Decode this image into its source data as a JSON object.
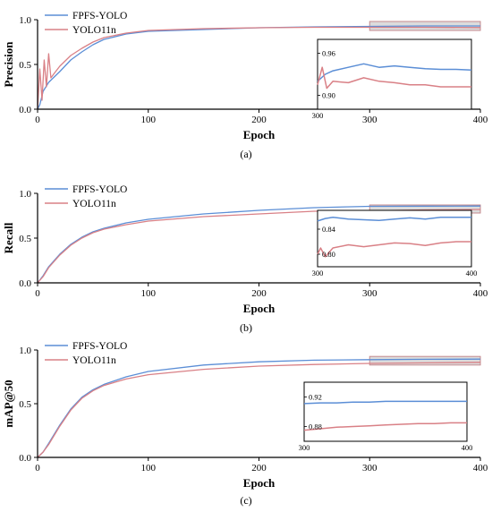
{
  "colors": {
    "fpfs": "#5b8ed6",
    "yolo": "#d98086",
    "highlight_fill": "#d3d3d3",
    "highlight_stroke": "#c48a8e"
  },
  "chart_data": [
    {
      "type": "line",
      "caption": "(a)",
      "xlabel": "Epoch",
      "ylabel": "Precision",
      "xlim": [
        0,
        400
      ],
      "ylim": [
        0,
        1.0
      ],
      "xticks": [
        "0",
        "100",
        "200",
        "300",
        "400"
      ],
      "yticks": [
        "0.0",
        "0.5",
        "1.0"
      ],
      "legend": "top-left",
      "series": [
        {
          "name": "FPFS-YOLO",
          "points": [
            [
              0,
              0.0
            ],
            [
              2,
              0.05
            ],
            [
              5,
              0.2
            ],
            [
              10,
              0.3
            ],
            [
              20,
              0.42
            ],
            [
              30,
              0.55
            ],
            [
              40,
              0.64
            ],
            [
              50,
              0.72
            ],
            [
              60,
              0.78
            ],
            [
              80,
              0.84
            ],
            [
              100,
              0.87
            ],
            [
              150,
              0.89
            ],
            [
              200,
              0.91
            ],
            [
              250,
              0.92
            ],
            [
              300,
              0.925
            ],
            [
              350,
              0.93
            ],
            [
              400,
              0.93
            ]
          ]
        },
        {
          "name": "YOLO11n",
          "points": [
            [
              0,
              0.0
            ],
            [
              2,
              0.45
            ],
            [
              4,
              0.1
            ],
            [
              6,
              0.55
            ],
            [
              8,
              0.25
            ],
            [
              10,
              0.62
            ],
            [
              12,
              0.35
            ],
            [
              15,
              0.4
            ],
            [
              20,
              0.48
            ],
            [
              30,
              0.6
            ],
            [
              40,
              0.68
            ],
            [
              50,
              0.75
            ],
            [
              60,
              0.8
            ],
            [
              80,
              0.85
            ],
            [
              100,
              0.88
            ],
            [
              150,
              0.9
            ],
            [
              200,
              0.91
            ],
            [
              250,
              0.915
            ],
            [
              300,
              0.915
            ],
            [
              350,
              0.915
            ],
            [
              400,
              0.912
            ]
          ]
        }
      ],
      "inset": {
        "xlim": [
          300,
          400
        ],
        "ylim": [
          0.88,
          0.98
        ],
        "xticks": [
          "300"
        ],
        "yticks": [
          "0.90",
          "0.96"
        ],
        "series": [
          {
            "name": "FPFS-YOLO",
            "points": [
              [
                300,
                0.92
              ],
              [
                305,
                0.93
              ],
              [
                310,
                0.935
              ],
              [
                320,
                0.94
              ],
              [
                330,
                0.945
              ],
              [
                340,
                0.94
              ],
              [
                350,
                0.942
              ],
              [
                360,
                0.94
              ],
              [
                370,
                0.938
              ],
              [
                380,
                0.937
              ],
              [
                390,
                0.937
              ],
              [
                400,
                0.936
              ]
            ]
          },
          {
            "name": "YOLO11n",
            "points": [
              [
                300,
                0.915
              ],
              [
                303,
                0.94
              ],
              [
                306,
                0.91
              ],
              [
                310,
                0.92
              ],
              [
                320,
                0.918
              ],
              [
                330,
                0.925
              ],
              [
                340,
                0.92
              ],
              [
                350,
                0.918
              ],
              [
                360,
                0.915
              ],
              [
                370,
                0.915
              ],
              [
                380,
                0.912
              ],
              [
                390,
                0.912
              ],
              [
                400,
                0.912
              ]
            ]
          }
        ]
      }
    },
    {
      "type": "line",
      "caption": "(b)",
      "xlabel": "Epoch",
      "ylabel": "Recall",
      "xlim": [
        0,
        400
      ],
      "ylim": [
        0,
        1.0
      ],
      "xticks": [
        "0",
        "100",
        "200",
        "300",
        "400"
      ],
      "yticks": [
        "0.0",
        "0.5",
        "1.0"
      ],
      "legend": "top-left",
      "series": [
        {
          "name": "FPFS-YOLO",
          "points": [
            [
              0,
              0.0
            ],
            [
              5,
              0.08
            ],
            [
              10,
              0.18
            ],
            [
              20,
              0.32
            ],
            [
              30,
              0.43
            ],
            [
              40,
              0.51
            ],
            [
              50,
              0.57
            ],
            [
              60,
              0.61
            ],
            [
              80,
              0.67
            ],
            [
              100,
              0.71
            ],
            [
              150,
              0.77
            ],
            [
              200,
              0.81
            ],
            [
              250,
              0.84
            ],
            [
              300,
              0.855
            ],
            [
              350,
              0.857
            ],
            [
              400,
              0.858
            ]
          ]
        },
        {
          "name": "YOLO11n",
          "points": [
            [
              0,
              0.0
            ],
            [
              5,
              0.07
            ],
            [
              10,
              0.17
            ],
            [
              20,
              0.31
            ],
            [
              30,
              0.42
            ],
            [
              40,
              0.5
            ],
            [
              50,
              0.56
            ],
            [
              60,
              0.6
            ],
            [
              80,
              0.65
            ],
            [
              100,
              0.69
            ],
            [
              150,
              0.74
            ],
            [
              200,
              0.77
            ],
            [
              250,
              0.8
            ],
            [
              300,
              0.805
            ],
            [
              350,
              0.815
            ],
            [
              400,
              0.82
            ]
          ]
        }
      ],
      "inset": {
        "xlim": [
          300,
          400
        ],
        "ylim": [
          0.78,
          0.87
        ],
        "xticks": [
          "300",
          "400"
        ],
        "yticks": [
          "0.80",
          "0.84"
        ],
        "series": [
          {
            "name": "FPFS-YOLO",
            "points": [
              [
                300,
                0.853
              ],
              [
                305,
                0.857
              ],
              [
                310,
                0.859
              ],
              [
                320,
                0.856
              ],
              [
                330,
                0.855
              ],
              [
                340,
                0.854
              ],
              [
                350,
                0.856
              ],
              [
                360,
                0.858
              ],
              [
                370,
                0.856
              ],
              [
                380,
                0.859
              ],
              [
                390,
                0.859
              ],
              [
                400,
                0.859
              ]
            ]
          },
          {
            "name": "YOLO11n",
            "points": [
              [
                300,
                0.8
              ],
              [
                302,
                0.81
              ],
              [
                305,
                0.796
              ],
              [
                310,
                0.81
              ],
              [
                320,
                0.815
              ],
              [
                330,
                0.812
              ],
              [
                340,
                0.815
              ],
              [
                350,
                0.818
              ],
              [
                360,
                0.817
              ],
              [
                370,
                0.814
              ],
              [
                380,
                0.818
              ],
              [
                390,
                0.82
              ],
              [
                400,
                0.82
              ]
            ]
          }
        ]
      }
    },
    {
      "type": "line",
      "caption": "(c)",
      "xlabel": "Epoch",
      "ylabel": "mAP@50",
      "xlim": [
        0,
        400
      ],
      "ylim": [
        0,
        1.0
      ],
      "xticks": [
        "0",
        "100",
        "200",
        "300",
        "400"
      ],
      "yticks": [
        "0.0",
        "0.5",
        "1.0"
      ],
      "legend": "top-left",
      "series": [
        {
          "name": "FPFS-YOLO",
          "points": [
            [
              0,
              0.0
            ],
            [
              5,
              0.05
            ],
            [
              10,
              0.13
            ],
            [
              20,
              0.3
            ],
            [
              30,
              0.45
            ],
            [
              40,
              0.56
            ],
            [
              50,
              0.63
            ],
            [
              60,
              0.68
            ],
            [
              80,
              0.75
            ],
            [
              100,
              0.8
            ],
            [
              150,
              0.86
            ],
            [
              200,
              0.89
            ],
            [
              250,
              0.905
            ],
            [
              300,
              0.91
            ],
            [
              350,
              0.913
            ],
            [
              400,
              0.915
            ]
          ]
        },
        {
          "name": "YOLO11n",
          "points": [
            [
              0,
              0.0
            ],
            [
              5,
              0.05
            ],
            [
              10,
              0.12
            ],
            [
              20,
              0.29
            ],
            [
              30,
              0.44
            ],
            [
              40,
              0.55
            ],
            [
              50,
              0.62
            ],
            [
              60,
              0.67
            ],
            [
              80,
              0.73
            ],
            [
              100,
              0.77
            ],
            [
              150,
              0.82
            ],
            [
              200,
              0.85
            ],
            [
              250,
              0.865
            ],
            [
              300,
              0.875
            ],
            [
              350,
              0.88
            ],
            [
              400,
              0.885
            ]
          ]
        }
      ],
      "inset": {
        "xlim": [
          300,
          400
        ],
        "ylim": [
          0.86,
          0.94
        ],
        "xticks": [
          "300",
          "400"
        ],
        "yticks": [
          "0.88",
          "0.92"
        ],
        "series": [
          {
            "name": "FPFS-YOLO",
            "points": [
              [
                300,
                0.911
              ],
              [
                310,
                0.912
              ],
              [
                320,
                0.912
              ],
              [
                330,
                0.913
              ],
              [
                340,
                0.913
              ],
              [
                350,
                0.914
              ],
              [
                360,
                0.914
              ],
              [
                370,
                0.914
              ],
              [
                380,
                0.914
              ],
              [
                390,
                0.914
              ],
              [
                400,
                0.914
              ]
            ]
          },
          {
            "name": "YOLO11n",
            "points": [
              [
                300,
                0.875
              ],
              [
                310,
                0.877
              ],
              [
                320,
                0.879
              ],
              [
                330,
                0.88
              ],
              [
                340,
                0.881
              ],
              [
                350,
                0.882
              ],
              [
                360,
                0.883
              ],
              [
                370,
                0.884
              ],
              [
                380,
                0.884
              ],
              [
                390,
                0.885
              ],
              [
                400,
                0.885
              ]
            ]
          }
        ]
      }
    }
  ]
}
